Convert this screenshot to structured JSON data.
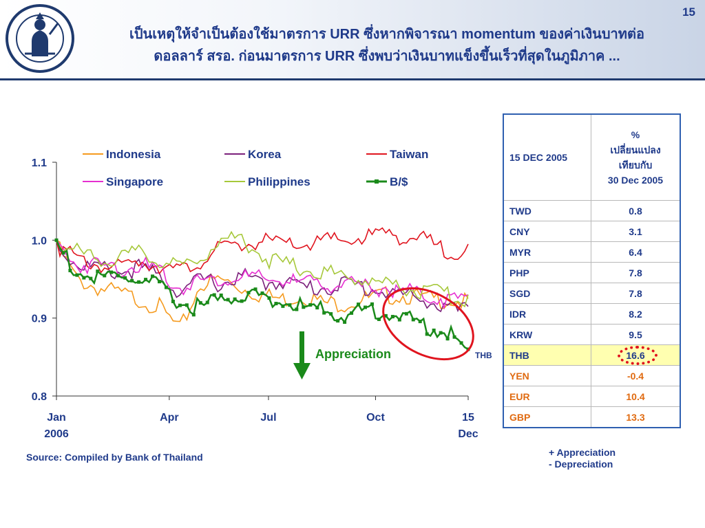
{
  "page_number": "15",
  "title_line1": "เป็นเหตุให้จำเป็นต้องใช้มาตรการ URR ซึ่งหากพิจารณา momentum ของค่าเงินบาทต่อ",
  "title_line2": "ดอลลาร์ สรอ. ก่อนมาตรการ URR ซึ่งพบว่าเงินบาทแข็งขึ้นเร็วที่สุดในภูมิภาค ...",
  "source": "Source: Compiled by Bank of Thailand",
  "note_line1": "+ Appreciation",
  "note_line2": "-  Depreciation",
  "colors": {
    "title": "#1f3a8a",
    "header_rule": "#1f3a6e",
    "highlight_red": "#e0141e",
    "arrow_green": "#1a8a1a"
  },
  "chart_data": {
    "type": "line",
    "title": "",
    "xlabel": "",
    "ylabel": "",
    "ylim": [
      0.8,
      1.1
    ],
    "yticks": [
      "1.1",
      "1.0",
      "0.9",
      "0.8"
    ],
    "xticks": [
      {
        "line1": "Jan",
        "line2": "2006",
        "x": 0
      },
      {
        "line1": "Apr",
        "line2": "",
        "x": 0.274
      },
      {
        "line1": "Jul",
        "line2": "",
        "x": 0.515
      },
      {
        "line1": "Oct",
        "line2": "",
        "x": 0.775
      },
      {
        "line1": "15",
        "line2": "Dec",
        "x": 1.0
      }
    ],
    "x": [
      0,
      0.05,
      0.1,
      0.15,
      0.2,
      0.25,
      0.3,
      0.35,
      0.4,
      0.45,
      0.5,
      0.55,
      0.6,
      0.65,
      0.7,
      0.75,
      0.8,
      0.85,
      0.9,
      0.95,
      1.0
    ],
    "series": [
      {
        "name": "Indonesia",
        "color": "#f59a1e",
        "values": [
          1.0,
          0.955,
          0.945,
          0.938,
          0.93,
          0.92,
          0.89,
          0.95,
          0.955,
          0.945,
          0.935,
          0.93,
          0.935,
          0.925,
          0.925,
          0.93,
          0.935,
          0.935,
          0.93,
          0.93,
          0.925
        ]
      },
      {
        "name": "Korea",
        "color": "#7a1f7a",
        "values": [
          1.0,
          0.975,
          0.97,
          0.965,
          0.97,
          0.96,
          0.94,
          0.955,
          0.95,
          0.96,
          0.95,
          0.955,
          0.945,
          0.945,
          0.95,
          0.945,
          0.94,
          0.935,
          0.93,
          0.915,
          0.915
        ]
      },
      {
        "name": "Taiwan",
        "color": "#e0141e",
        "values": [
          1.0,
          0.98,
          0.975,
          0.97,
          0.98,
          0.975,
          0.965,
          0.98,
          0.995,
          1.0,
          1.005,
          1.0,
          1.0,
          1.005,
          1.005,
          1.01,
          1.015,
          1.01,
          1.005,
          0.99,
          0.995
        ]
      },
      {
        "name": "Singapore",
        "color": "#e62ed0",
        "values": [
          1.0,
          0.975,
          0.975,
          0.97,
          0.975,
          0.965,
          0.945,
          0.955,
          0.955,
          0.96,
          0.955,
          0.955,
          0.95,
          0.95,
          0.95,
          0.945,
          0.945,
          0.94,
          0.935,
          0.93,
          0.93
        ]
      },
      {
        "name": "Philippines",
        "color": "#a6c83a",
        "values": [
          1.0,
          0.99,
          0.985,
          0.98,
          0.99,
          0.98,
          0.97,
          0.985,
          1.005,
          1.01,
          0.985,
          0.975,
          0.97,
          0.965,
          0.96,
          0.955,
          0.95,
          0.945,
          0.94,
          0.935,
          0.93
        ]
      },
      {
        "name": "B/$",
        "color": "#1a8a1a",
        "marker": true,
        "values": [
          1.0,
          0.965,
          0.955,
          0.96,
          0.955,
          0.945,
          0.925,
          0.92,
          0.93,
          0.935,
          0.935,
          0.925,
          0.92,
          0.915,
          0.91,
          0.915,
          0.915,
          0.905,
          0.895,
          0.89,
          0.86
        ]
      }
    ],
    "legend_position": "top",
    "annotations": {
      "appreciation_label": "Appreciation",
      "thb_label": "THB"
    }
  },
  "table": {
    "header_left": "15 DEC 2005",
    "header_right": [
      "%",
      "เปลี่ยนแปลง",
      "เทียบกับ",
      "30 Dec 2005"
    ],
    "rows": [
      {
        "code": "TWD",
        "value": "0.8"
      },
      {
        "code": "CNY",
        "value": "3.1"
      },
      {
        "code": "MYR",
        "value": "6.4"
      },
      {
        "code": "PHP",
        "value": "7.8"
      },
      {
        "code": "SGD",
        "value": "7.8"
      },
      {
        "code": "IDR",
        "value": "8.2"
      },
      {
        "code": "KRW",
        "value": "9.5"
      },
      {
        "code": "THB",
        "value": "16.6"
      },
      {
        "code": "YEN",
        "value": "-0.4"
      },
      {
        "code": "EUR",
        "value": "10.4"
      },
      {
        "code": "GBP",
        "value": "13.3"
      }
    ]
  }
}
